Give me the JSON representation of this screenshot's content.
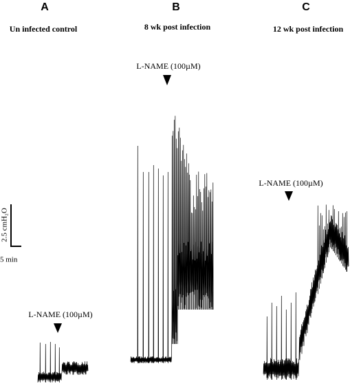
{
  "panels": [
    {
      "letter": "A",
      "title": "Un infected control",
      "drug": "L-NAME (100µM)"
    },
    {
      "letter": "B",
      "title": "8 wk post infection",
      "drug": "L-NAME (100µM)"
    },
    {
      "letter": "C",
      "title": "12 wk post infection",
      "drug": "L-NAME (100µM)"
    }
  ],
  "scale_bar": {
    "vertical": "2.5 cmH₂O",
    "horizontal": "5 min"
  }
}
